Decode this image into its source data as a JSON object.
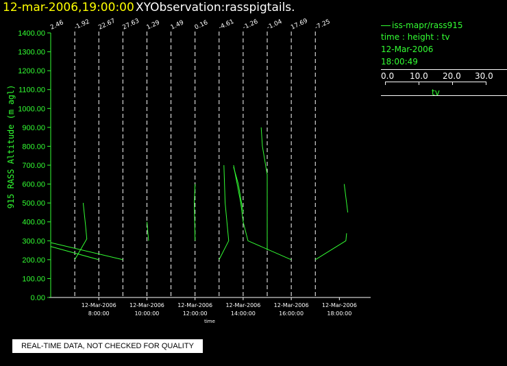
{
  "header": {
    "time": "12-mar-2006,19:00:00",
    "name": "XYObservation:rasspigtails."
  },
  "legend": {
    "series_name": "iss-mapr/rass915",
    "fields": "time : height : tv",
    "date": "12-Mar-2006",
    "time": "18:00:49",
    "scale_ticks": [
      "0.0",
      "10.0",
      "20.0",
      "30.0"
    ],
    "scale_unit": "tv"
  },
  "notice": "REAL-TIME DATA, NOT CHECKED FOR QUALITY",
  "colors": {
    "data": "#33ff33",
    "axis": "#33ff33",
    "title_time": "#ffff00",
    "grid": "#ffffff",
    "background": "#000000"
  },
  "chart_data": {
    "type": "line",
    "title": "",
    "xlabel": "time",
    "ylabel": "915 RASS Altitude (m agl)",
    "ylim": [
      0,
      1400
    ],
    "xlim_hours": [
      6.0,
      19.3
    ],
    "y_ticks": [
      "0.00",
      "100.00",
      "200.00",
      "300.00",
      "400.00",
      "500.00",
      "600.00",
      "700.00",
      "800.00",
      "900.00",
      "1000.00",
      "1100.00",
      "1200.00",
      "1300.00",
      "1400.00"
    ],
    "x_ticks": [
      {
        "hour": 8,
        "date": "12-Mar-2006",
        "time": "8:00:00"
      },
      {
        "hour": 10,
        "date": "12-Mar-2006",
        "time": "10:00:00"
      },
      {
        "hour": 12,
        "date": "12-Mar-2006",
        "time": "12:00:00"
      },
      {
        "hour": 14,
        "date": "12-Mar-2006",
        "time": "14:00:00"
      },
      {
        "hour": 16,
        "date": "12-Mar-2006",
        "time": "16:00:00"
      },
      {
        "hour": 18,
        "date": "12-Mar-2006",
        "time": "18:00:00"
      }
    ],
    "profiles": [
      {
        "hour": 6.0,
        "label": "2.46"
      },
      {
        "hour": 7.0,
        "label": "-1.92"
      },
      {
        "hour": 8.0,
        "label": "22.67"
      },
      {
        "hour": 9.0,
        "label": "27.63"
      },
      {
        "hour": 10.0,
        "label": "1.29"
      },
      {
        "hour": 11.0,
        "label": "1.49"
      },
      {
        "hour": 12.0,
        "label": "0.16"
      },
      {
        "hour": 13.0,
        "label": "-4.61"
      },
      {
        "hour": 14.0,
        "label": "-1.26"
      },
      {
        "hour": 15.0,
        "label": "-1.04"
      },
      {
        "hour": 16.0,
        "label": "17.69"
      },
      {
        "hour": 17.0,
        "label": "-7.25"
      }
    ],
    "series": [
      {
        "points": [
          [
            6.0,
            1400
          ],
          [
            6.0,
            0
          ]
        ]
      },
      {
        "points": [
          [
            6.0,
            290
          ],
          [
            9.0,
            200
          ]
        ]
      },
      {
        "points": [
          [
            6.0,
            270
          ],
          [
            8.0,
            200
          ]
        ]
      },
      {
        "points": [
          [
            7.35,
            500
          ],
          [
            7.45,
            380
          ],
          [
            7.5,
            310
          ],
          [
            7.0,
            200
          ]
        ]
      },
      {
        "points": [
          [
            10.0,
            400
          ],
          [
            10.07,
            300
          ]
        ]
      },
      {
        "points": [
          [
            12.0,
            600
          ],
          [
            11.97,
            500
          ],
          [
            12.0,
            300
          ]
        ]
      },
      {
        "points": [
          [
            13.0,
            200
          ],
          [
            13.4,
            300
          ],
          [
            13.25,
            500
          ],
          [
            13.2,
            700
          ]
        ]
      },
      {
        "points": [
          [
            13.6,
            700
          ],
          [
            13.9,
            500
          ],
          [
            14.0,
            400
          ],
          [
            14.2,
            300
          ],
          [
            16.0,
            200
          ]
        ]
      },
      {
        "points": [
          [
            13.6,
            690
          ],
          [
            13.8,
            600
          ],
          [
            14.0,
            450
          ]
        ]
      },
      {
        "points": [
          [
            14.75,
            900
          ],
          [
            14.8,
            800
          ],
          [
            15.0,
            650
          ],
          [
            15.0,
            500
          ],
          [
            15.0,
            420
          ],
          [
            15.0,
            250
          ]
        ]
      },
      {
        "points": [
          [
            17.0,
            200
          ],
          [
            18.27,
            300
          ],
          [
            18.3,
            340
          ]
        ]
      },
      {
        "points": [
          [
            18.2,
            600
          ],
          [
            18.35,
            450
          ]
        ]
      }
    ]
  }
}
